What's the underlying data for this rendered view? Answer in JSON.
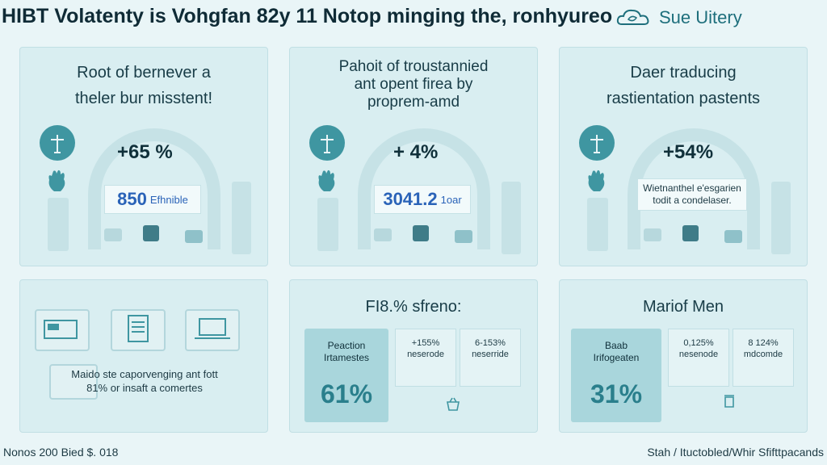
{
  "header": {
    "title": "HIBT Volatenty is Vohgfan 82y 11 Notop minging the, ronhyureo",
    "brand": "Sue Uitery"
  },
  "top_panels": [
    {
      "title_line1": "Root of bernever a",
      "title_line2": "theler bur misstent!",
      "percent": "+65 %",
      "value": "850",
      "unit": "Efhnible"
    },
    {
      "title_line1": "Pahoit of troustannied",
      "title_line2": "ant opent firea by",
      "title_line3": "proprem-amd",
      "percent": "+ 4%",
      "value": "3041.2",
      "unit": "1oar"
    },
    {
      "title_line1": "Daer traducing",
      "title_line2": "rastientation pastents",
      "percent": "+54%",
      "note_line1": "Wietnanthel e'esgarien",
      "note_line2": "todit a condelaser."
    }
  ],
  "bottom_left": {
    "caption_line1": "Maido ste caporvenging ant fott",
    "caption_line2": "81% or insaft a comertes"
  },
  "bottom_mid": {
    "title": "FI8.% sfreno:",
    "left_label1": "Peaction",
    "left_label2": "Irtamestes",
    "left_value": "61%",
    "box1_line1": "+155%",
    "box1_line2": "neserode",
    "box2_line1": "6-153%",
    "box2_line2": "neserride"
  },
  "bottom_right": {
    "title": "Mariof Men",
    "left_label1": "Baab",
    "left_label2": "Irifogeaten",
    "left_value": "31%",
    "box1_line1": "0,125%",
    "box1_line2": "nesenode",
    "box2_line1": "8 124%",
    "box2_line2": "mdcomde"
  },
  "footer": {
    "left": "Nonos 200 Bied $. 018",
    "right": "Stah / Ituctobled/Whir Sfifttpacands"
  },
  "colors": {
    "accent": "#3f96a1",
    "value_blue": "#2a63b8",
    "panel": "#d9eef1"
  }
}
